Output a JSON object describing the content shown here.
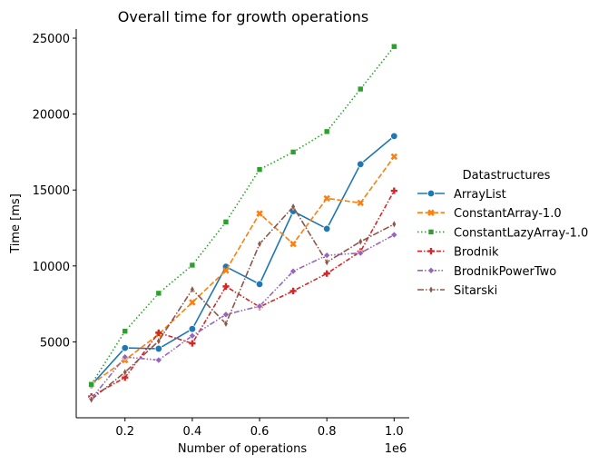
{
  "chart_data": {
    "type": "line",
    "title": "Overall time for growth operations",
    "xlabel": "Number of operations",
    "ylabel": "Time [ms]",
    "x_offset_label": "1e6",
    "x": [
      0.1,
      0.2,
      0.3,
      0.4,
      0.5,
      0.6,
      0.7,
      0.8,
      0.9,
      1.0
    ],
    "x_ticks": [
      "0.2",
      "0.4",
      "0.6",
      "0.8",
      "1.0"
    ],
    "y_ticks": [
      "5000",
      "10000",
      "15000",
      "20000",
      "25000"
    ],
    "xlim": [
      0.055,
      1.045
    ],
    "ylim": [
      0,
      25600
    ],
    "grid": false,
    "legend_placement": "right",
    "legend_title": "Datastructures",
    "series": [
      {
        "name": "ArrayList",
        "color": "#1f77b4",
        "dash": "solid",
        "marker": "circle",
        "values": [
          2150,
          4600,
          4550,
          5850,
          9950,
          8800,
          13600,
          12450,
          16700,
          18550
        ]
      },
      {
        "name": "ConstantArray-1.0",
        "color": "#ff7f0e",
        "dash": "dashed",
        "marker": "x",
        "values": [
          2200,
          3800,
          5500,
          7600,
          9700,
          13450,
          11450,
          14450,
          14150,
          17200
        ]
      },
      {
        "name": "ConstantLazyArray-1.0",
        "color": "#2ca02c",
        "dash": "dotted",
        "marker": "square",
        "values": [
          2200,
          5700,
          8200,
          10050,
          12900,
          16350,
          17500,
          18850,
          21650,
          24450
        ]
      },
      {
        "name": "Brodnik",
        "color": "#d62728",
        "dash": "dashdot",
        "marker": "plus",
        "values": [
          1400,
          2650,
          5600,
          4900,
          8650,
          7300,
          8350,
          9500,
          10950,
          14950
        ]
      },
      {
        "name": "BrodnikPowerTwo",
        "color": "#9467bd",
        "dash": "dashdotdot",
        "marker": "diamond",
        "values": [
          1250,
          4000,
          3800,
          5400,
          6800,
          7350,
          9650,
          10700,
          10850,
          12050
        ]
      },
      {
        "name": "Sitarski",
        "color": "#8c564b",
        "dash": "longdash",
        "marker": "thindiamond",
        "values": [
          1200,
          3000,
          5050,
          8450,
          6200,
          11450,
          13900,
          10250,
          11600,
          12750
        ]
      }
    ]
  }
}
